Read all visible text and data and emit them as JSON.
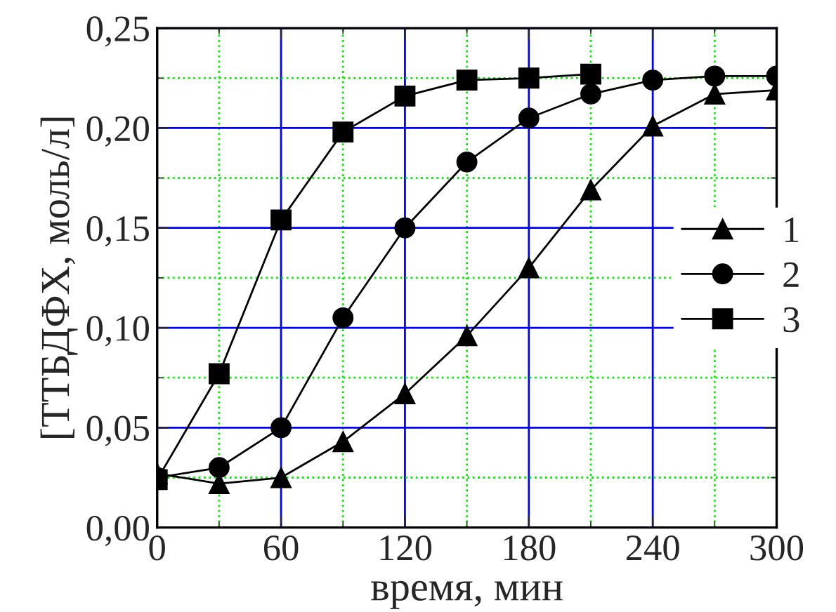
{
  "chart_data": {
    "type": "line",
    "xlabel": "время, мин",
    "ylabel": "[ТТБДФХ, моль/л]",
    "x": [
      0,
      30,
      60,
      90,
      120,
      150,
      180,
      210,
      240,
      270,
      300
    ],
    "xlim": [
      0,
      300
    ],
    "xticks": [
      0,
      {
        "value": 30,
        "label": null
      },
      60,
      {
        "value": 90,
        "label": null
      },
      120,
      {
        "value": 150,
        "label": null
      },
      180,
      {
        "value": 210,
        "label": null
      },
      240,
      {
        "value": 270,
        "label": null
      },
      300
    ],
    "ylim": [
      0,
      0.25
    ],
    "yticks": [
      {
        "value": 0,
        "label": "0,00"
      },
      {
        "value": 0.025,
        "label": null
      },
      {
        "value": 0.05,
        "label": "0,05"
      },
      {
        "value": 0.075,
        "label": null
      },
      {
        "value": 0.1,
        "label": "0,10"
      },
      {
        "value": 0.125,
        "label": null
      },
      {
        "value": 0.15,
        "label": "0,15"
      },
      {
        "value": 0.175,
        "label": null
      },
      {
        "value": 0.2,
        "label": "0,20"
      },
      {
        "value": 0.225,
        "label": null
      },
      {
        "value": 0.25,
        "label": "0,25"
      }
    ],
    "grid": true,
    "legend": "right",
    "line_style": "solid",
    "series": [
      {
        "name": "1",
        "color": "#000000",
        "marker": "triangle",
        "values": [
          0.027,
          0.022,
          0.025,
          0.043,
          0.067,
          0.096,
          0.13,
          0.169,
          0.201,
          0.217,
          0.219
        ]
      },
      {
        "name": "2",
        "color": "#000000",
        "marker": "circle",
        "values": [
          0.025,
          0.03,
          0.05,
          0.105,
          0.15,
          0.183,
          0.205,
          0.217,
          0.224,
          0.226,
          0.226
        ]
      },
      {
        "name": "3",
        "color": "#000000",
        "marker": "square",
        "x": [
          0,
          30,
          60,
          90,
          120,
          150,
          180,
          210
        ],
        "values": [
          0.024,
          0.077,
          0.154,
          0.198,
          0.216,
          0.224,
          0.225,
          0.227
        ]
      }
    ]
  }
}
